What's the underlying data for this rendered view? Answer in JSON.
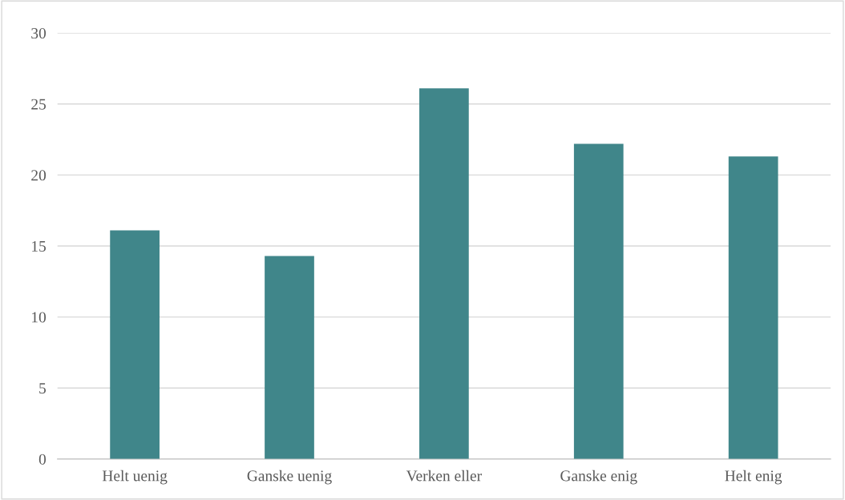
{
  "chart_data": {
    "type": "bar",
    "categories": [
      "Helt uenig",
      "Ganske uenig",
      "Verken eller",
      "Ganske enig",
      "Helt enig"
    ],
    "values": [
      16.1,
      14.3,
      26.1,
      22.2,
      21.3
    ],
    "color": "#40868a",
    "ylim": [
      0,
      30
    ],
    "yticks": [
      0,
      5,
      10,
      15,
      20,
      25,
      30
    ],
    "grid": "y",
    "legend": false
  }
}
